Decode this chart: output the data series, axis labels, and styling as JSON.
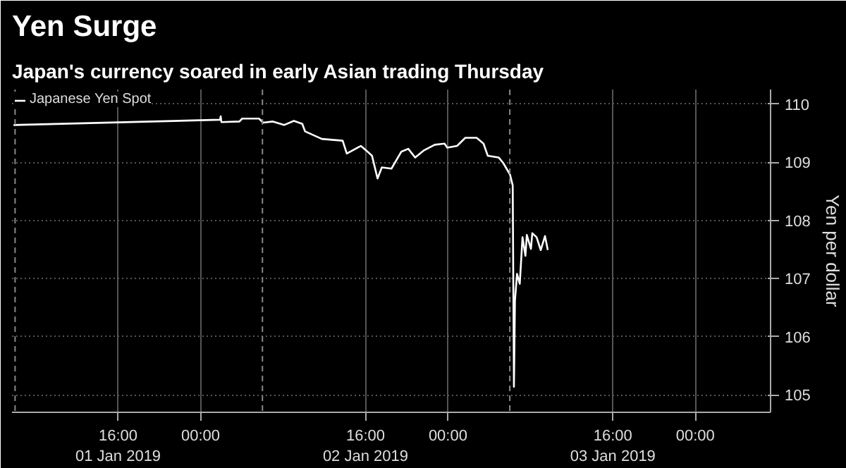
{
  "chart_data": {
    "type": "line",
    "title": "Yen Surge",
    "subtitle": "Japan's currency soared in early Asian trading Thursday",
    "ylabel": "Yen per dollar",
    "x": [
      "2019-01-01T05:51",
      "2019-01-02T01:53",
      "2019-01-02T01:57",
      "2019-01-02T02:01",
      "2019-01-02T03:46",
      "2019-01-02T04:02",
      "2019-01-02T05:40",
      "2019-01-02T06:04",
      "2019-01-02T07:01",
      "2019-01-02T08:06",
      "2019-01-02T09:03",
      "2019-01-02T09:52",
      "2019-01-02T10:08",
      "2019-01-02T11:46",
      "2019-01-02T13:47",
      "2019-01-02T14:11",
      "2019-01-02T15:33",
      "2019-01-02T16:05",
      "2019-01-02T16:38",
      "2019-01-02T17:10",
      "2019-01-02T17:35",
      "2019-01-02T18:31",
      "2019-01-02T19:28",
      "2019-01-02T20:09",
      "2019-01-02T20:49",
      "2019-01-02T21:38",
      "2019-01-02T22:43",
      "2019-01-02T23:40",
      "2019-01-02T23:56",
      "2019-01-03T00:53",
      "2019-01-03T01:41",
      "2019-01-03T02:47",
      "2019-01-03T03:27",
      "2019-01-03T03:52",
      "2019-01-03T04:56",
      "2019-01-03T05:21",
      "2019-01-03T06:01",
      "2019-01-03T06:17",
      "2019-01-03T06:24",
      "2019-01-03T06:30",
      "2019-01-03T06:42",
      "2019-01-03T06:58",
      "2019-01-03T07:14",
      "2019-01-03T07:31",
      "2019-01-03T07:39",
      "2019-01-03T08:03",
      "2019-01-03T08:11",
      "2019-01-03T08:36",
      "2019-01-03T09:00",
      "2019-01-03T09:25",
      "2019-01-03T09:41"
    ],
    "series": [
      {
        "name": "Japanese Yen Spot",
        "color": "#ffffff",
        "values": [
          109.64,
          109.73,
          109.79,
          109.69,
          109.7,
          109.75,
          109.75,
          109.68,
          109.7,
          109.64,
          109.71,
          109.66,
          109.53,
          109.4,
          109.37,
          109.15,
          109.28,
          109.2,
          109.11,
          108.72,
          108.91,
          108.89,
          109.18,
          109.23,
          109.08,
          109.2,
          109.3,
          109.32,
          109.25,
          109.28,
          109.42,
          109.42,
          109.32,
          109.11,
          109.08,
          108.99,
          108.79,
          108.6,
          105.14,
          106.62,
          107.08,
          106.91,
          107.71,
          107.39,
          107.75,
          107.51,
          107.78,
          107.71,
          107.49,
          107.73,
          107.49
        ]
      }
    ],
    "xlim": [
      "2019-01-01T05:42",
      "2019-01-04T07:18"
    ],
    "ylim": [
      104.7,
      110.25
    ],
    "xticks": [
      {
        "value": "2019-01-01T16:00",
        "label": "16:00\n01 Jan 2019"
      },
      {
        "value": "2019-01-02T00:00",
        "label": "00:00"
      },
      {
        "value": "2019-01-02T16:00",
        "label": "16:00\n02 Jan 2019"
      },
      {
        "value": "2019-01-03T00:00",
        "label": "00:00"
      },
      {
        "value": "2019-01-03T16:00",
        "label": "16:00\n03 Jan 2019"
      },
      {
        "value": "2019-01-04T00:00",
        "label": "00:00"
      }
    ],
    "yticks": [
      105,
      106,
      107,
      108,
      109,
      110
    ],
    "ref_lines": [
      {
        "axis": "x",
        "value": "2019-01-01T06:00",
        "label": null,
        "color": "#888888",
        "line_style": "dashed"
      },
      {
        "axis": "x",
        "value": "2019-01-02T06:00",
        "label": null,
        "color": "#888888",
        "line_style": "dashed"
      },
      {
        "axis": "x",
        "value": "2019-01-03T06:00",
        "label": null,
        "color": "#888888",
        "line_style": "dashed"
      }
    ],
    "grid": true,
    "legend": "top left",
    "marker": "none",
    "line_style": "solid"
  }
}
